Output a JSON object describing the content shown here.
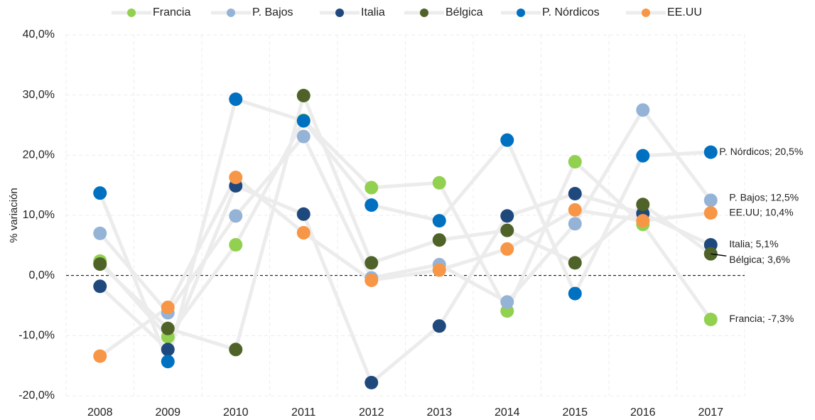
{
  "chart_data": {
    "type": "line",
    "y_label": "% variación",
    "categories": [
      "2008",
      "2009",
      "2010",
      "2011",
      "2012",
      "2013",
      "2014",
      "2015",
      "2016",
      "2017"
    ],
    "ylim": [
      -20,
      40
    ],
    "yticks": [
      {
        "value": -20,
        "label": "-20,0%"
      },
      {
        "value": -10,
        "label": "-10,0%"
      },
      {
        "value": 0,
        "label": "0,0%"
      },
      {
        "value": 10,
        "label": "10,0%"
      },
      {
        "value": 20,
        "label": "20,0%"
      },
      {
        "value": 30,
        "label": "30,0%"
      },
      {
        "value": 40,
        "label": "40,0%"
      }
    ],
    "grid": true,
    "line_color": "#ececec",
    "legend": "top",
    "series": [
      {
        "name": "Francia",
        "color": "#92d050",
        "values": [
          2.4,
          -10.2,
          5.1,
          25.8,
          14.6,
          15.4,
          -5.9,
          18.9,
          8.5,
          -7.3
        ],
        "value_labels": [
          null,
          null,
          null,
          null,
          null,
          null,
          null,
          null,
          null,
          "Francia; -7,3%"
        ]
      },
      {
        "name": "P. Bajos",
        "color": "#95b3d7",
        "values": [
          7.0,
          -6.2,
          9.9,
          23.1,
          -0.4,
          1.8,
          -4.4,
          8.6,
          27.5,
          12.5
        ],
        "value_labels": [
          null,
          null,
          null,
          null,
          null,
          null,
          null,
          null,
          null,
          "P. Bajos; 12,5%"
        ]
      },
      {
        "name": "Italia",
        "color": "#1f497d",
        "values": [
          -1.8,
          -12.3,
          14.9,
          10.2,
          -17.8,
          -8.4,
          9.9,
          13.6,
          10.3,
          5.1
        ],
        "value_labels": [
          null,
          null,
          null,
          null,
          null,
          null,
          null,
          null,
          null,
          "Italia; 5,1%"
        ]
      },
      {
        "name": "Bélgica",
        "color": "#4f6228",
        "values": [
          1.9,
          -8.8,
          -12.3,
          29.9,
          2.1,
          5.9,
          7.5,
          2.1,
          11.8,
          3.6
        ],
        "value_labels": [
          null,
          null,
          null,
          null,
          null,
          null,
          null,
          null,
          null,
          "Bélgica; 3,6%"
        ]
      },
      {
        "name": "P. Nórdicos",
        "color": "#0070c0",
        "values": [
          13.7,
          -14.3,
          29.3,
          25.7,
          11.7,
          9.1,
          22.5,
          -3.0,
          19.9,
          20.5
        ],
        "value_labels": [
          null,
          null,
          null,
          null,
          null,
          null,
          null,
          null,
          null,
          "P. Nórdicos; 20,5%"
        ]
      },
      {
        "name": "EE.UU",
        "color": "#f79646",
        "values": [
          -13.4,
          -5.3,
          16.3,
          7.1,
          -0.8,
          0.9,
          4.4,
          10.9,
          9.1,
          10.4
        ],
        "value_labels": [
          null,
          null,
          null,
          null,
          null,
          null,
          null,
          null,
          null,
          "EE.UU; 10,4%"
        ]
      }
    ]
  }
}
